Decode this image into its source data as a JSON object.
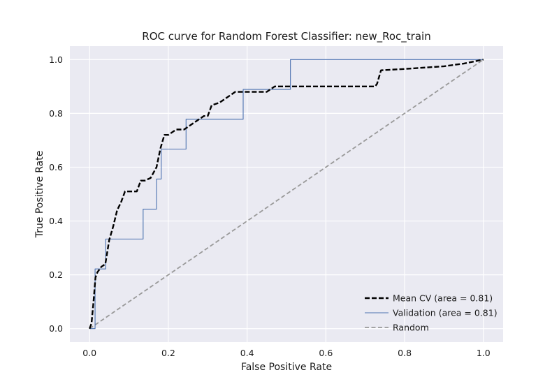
{
  "chart_data": {
    "type": "line",
    "title": "ROC curve for Random Forest Classifier: new_Roc_train",
    "xlabel": "False Positive Rate",
    "ylabel": "True Positive Rate",
    "xlim": [
      -0.05,
      1.05
    ],
    "ylim": [
      -0.05,
      1.05
    ],
    "xticks": [
      0.0,
      0.2,
      0.4,
      0.6,
      0.8,
      1.0
    ],
    "yticks": [
      0.0,
      0.2,
      0.4,
      0.6,
      0.8,
      1.0
    ],
    "tick_labels": [
      "0.0",
      "0.2",
      "0.4",
      "0.6",
      "0.8",
      "1.0"
    ],
    "grid": true,
    "background": "#eaeaf2",
    "legend_position": "lower-right",
    "series": [
      {
        "name": "Mean CV (area = 0.81)",
        "color": "#000000",
        "style": "dashed",
        "x": [
          0.0,
          0.005,
          0.01,
          0.015,
          0.02,
          0.03,
          0.04,
          0.05,
          0.06,
          0.07,
          0.08,
          0.09,
          0.1,
          0.12,
          0.13,
          0.14,
          0.155,
          0.17,
          0.18,
          0.19,
          0.2,
          0.22,
          0.24,
          0.26,
          0.28,
          0.29,
          0.3,
          0.31,
          0.33,
          0.35,
          0.37,
          0.4,
          0.45,
          0.47,
          0.5,
          0.55,
          0.6,
          0.65,
          0.7,
          0.725,
          0.73,
          0.74,
          0.8,
          0.9,
          0.95,
          1.0
        ],
        "y": [
          0.0,
          0.02,
          0.1,
          0.19,
          0.21,
          0.23,
          0.24,
          0.33,
          0.38,
          0.44,
          0.47,
          0.51,
          0.51,
          0.51,
          0.55,
          0.55,
          0.56,
          0.6,
          0.67,
          0.72,
          0.72,
          0.74,
          0.74,
          0.76,
          0.78,
          0.79,
          0.79,
          0.83,
          0.84,
          0.86,
          0.88,
          0.88,
          0.88,
          0.9,
          0.9,
          0.9,
          0.9,
          0.9,
          0.9,
          0.9,
          0.91,
          0.96,
          0.965,
          0.975,
          0.985,
          1.0
        ]
      },
      {
        "name": "Validation (area = 0.81)",
        "color": "#4c72b0",
        "style": "solid",
        "x": [
          0.0,
          0.014,
          0.014,
          0.034,
          0.034,
          0.041,
          0.041,
          0.136,
          0.136,
          0.17,
          0.17,
          0.182,
          0.182,
          0.245,
          0.245,
          0.39,
          0.39,
          0.51,
          0.51,
          1.0
        ],
        "y": [
          0.0,
          0.0,
          0.222,
          0.222,
          0.222,
          0.222,
          0.333,
          0.333,
          0.444,
          0.444,
          0.556,
          0.556,
          0.667,
          0.667,
          0.778,
          0.778,
          0.889,
          0.889,
          1.0,
          1.0
        ]
      },
      {
        "name": "Random",
        "color": "#999999",
        "style": "dashed",
        "x": [
          0.0,
          1.0
        ],
        "y": [
          0.0,
          1.0
        ]
      }
    ]
  }
}
